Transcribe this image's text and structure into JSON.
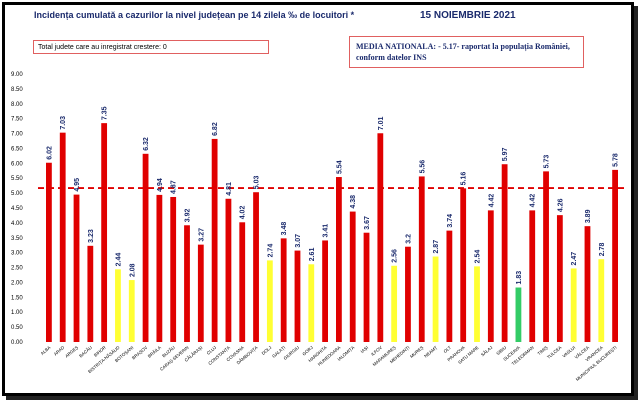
{
  "header": {
    "title": "Incidența cumulată a cazurilor la nivel județean pe 14 zilela ‰ de locuitori *",
    "date": "15 NOIEMBRIE 2021",
    "counties_increase_label": "Total judete care au inregistrat crestere: 0",
    "national_average_label": "MEDIA NATIONALA: - 5.17- raportat la populația României, conform datelor INS"
  },
  "colors": {
    "red": "#e00000",
    "yellow": "#ffff33",
    "green": "#33cc66",
    "reference_line": "#e00000"
  },
  "chart_data": {
    "type": "bar",
    "title": "Incidența cumulată a cazurilor la nivel județean pe 14 zilela ‰ de locuitori *",
    "ylim": [
      0,
      9
    ],
    "yticks": [
      "0.00",
      "0.50",
      "1.00",
      "1.50",
      "2.00",
      "2.50",
      "3.00",
      "3.50",
      "4.00",
      "4.50",
      "5.00",
      "5.50",
      "6.00",
      "6.50",
      "7.00",
      "7.50",
      "8.00",
      "8.50",
      "9.00"
    ],
    "reference_line": {
      "value": 5.17,
      "style": "dashed"
    },
    "grid": false,
    "legend": "none",
    "categories": [
      "ALBA",
      "ARAD",
      "ARGEȘ",
      "BACĂU",
      "BIHOR",
      "BISTRIȚA-NĂSĂUD",
      "BOTOȘANI",
      "BRAȘOV",
      "BRĂILA",
      "BUZĂU",
      "CARAȘ-SEVERIN",
      "CĂLĂRAȘI",
      "CLUJ",
      "CONSTANȚA",
      "COVASNA",
      "DÂMBOVIȚA",
      "DOLJ",
      "GALAȚI",
      "GIURGIU",
      "GORJ",
      "HARGHITA",
      "HUNEDOARA",
      "IALOMIȚA",
      "IAȘI",
      "ILFOV",
      "MARAMUREȘ",
      "MEHEDINȚI",
      "MUREȘ",
      "NEAMȚ",
      "OLT",
      "PRAHOVA",
      "SATU MARE",
      "SĂLAJ",
      "SIBIU",
      "SUCEAVA",
      "TELEORMAN",
      "TIMIȘ",
      "TULCEA",
      "VASLUI",
      "VÂLCEA",
      "VRANCEA",
      "MUNICIPIUL BUCUREȘTI"
    ],
    "values": [
      6.02,
      7.03,
      4.95,
      3.23,
      7.35,
      2.44,
      2.08,
      6.32,
      4.94,
      4.87,
      3.92,
      3.27,
      6.82,
      4.81,
      4.02,
      5.03,
      2.74,
      3.48,
      3.07,
      2.61,
      3.41,
      5.54,
      4.38,
      3.67,
      7.01,
      2.56,
      3.2,
      5.56,
      2.87,
      3.74,
      5.16,
      2.54,
      4.42,
      5.97,
      1.83,
      4.42,
      5.73,
      4.26,
      2.47,
      3.89,
      2.78,
      5.78
    ],
    "value_labels": [
      "6.02",
      "7.03",
      "4.95",
      "3.23",
      "7.35",
      "2.44",
      "2.08",
      "6.32",
      "4.94",
      "4.87",
      "3.92",
      "3.27",
      "6.82",
      "4.81",
      "4.02",
      "5.03",
      "2.74",
      "3.48",
      "3.07",
      "2.61",
      "3.41",
      "5.54",
      "4.38",
      "3.67",
      "7.01",
      "2.56",
      "3.2",
      "5.56",
      "2.87",
      "3.74",
      "5.16",
      "2.54",
      "4.42",
      "5.97",
      "1.83",
      "4.42",
      "5.73",
      "4.26",
      "2.47",
      "3.89",
      "2.78",
      "5.78"
    ],
    "bar_colors": [
      "red",
      "red",
      "red",
      "red",
      "red",
      "yellow",
      "yellow",
      "red",
      "red",
      "red",
      "red",
      "red",
      "red",
      "red",
      "red",
      "red",
      "yellow",
      "red",
      "red",
      "yellow",
      "red",
      "red",
      "red",
      "red",
      "red",
      "yellow",
      "red",
      "red",
      "yellow",
      "red",
      "red",
      "yellow",
      "red",
      "red",
      "green",
      "red",
      "red",
      "red",
      "yellow",
      "red",
      "yellow",
      "red"
    ]
  }
}
